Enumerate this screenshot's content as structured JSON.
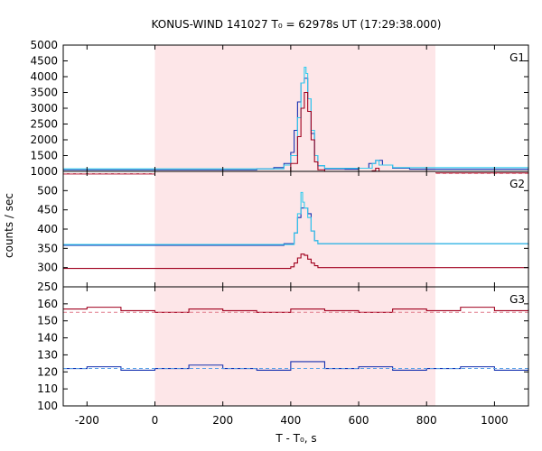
{
  "chart_data": {
    "type": "line",
    "title": "KONUS-WIND 141027 T₀ = 62978s UT (17:29:38.000)",
    "xlabel": "T - T₀, s",
    "ylabel": "counts / sec",
    "xlim": [
      -270,
      1100
    ],
    "x_ticks": [
      -200,
      0,
      200,
      400,
      600,
      800,
      1000
    ],
    "shaded_interval": [
      0,
      826
    ],
    "grid": false,
    "legend": "none",
    "colors": {
      "shade": "#fde6e8",
      "red": "#a0001e",
      "blue": "#1530b0",
      "cyan": "#33ccee",
      "red_fit": "#e07a8a",
      "blue_fit": "#5aa0e6"
    },
    "panels": [
      {
        "label": "G1",
        "ylim": [
          1000,
          5000
        ],
        "y_ticks": [
          1000,
          1500,
          2000,
          2500,
          3000,
          3500,
          4000,
          4500,
          5000
        ],
        "series": [
          {
            "style": "blue",
            "x": [
              -270,
              300,
              350,
              380,
              400,
              410,
              420,
              430,
              440,
              450,
              460,
              470,
              480,
              500,
              560,
              600,
              630,
              650,
              670,
              700,
              750,
              1100
            ],
            "y": [
              1050,
              1080,
              1120,
              1250,
              1600,
              2300,
              3200,
              3800,
              3950,
              3300,
              2200,
              1500,
              1180,
              1080,
              1070,
              1100,
              1250,
              1350,
              1200,
              1100,
              1070,
              1050
            ]
          },
          {
            "style": "cyan",
            "x": [
              -270,
              380,
              400,
              420,
              430,
              440,
              445,
              450,
              460,
              470,
              480,
              500,
              640,
              650,
              660,
              700,
              1100
            ],
            "y": [
              1080,
              1200,
              1500,
              2700,
              3800,
              4300,
              4100,
              3300,
              2300,
              1500,
              1180,
              1100,
              1250,
              1350,
              1200,
              1120,
              1080
            ]
          },
          {
            "style": "red",
            "x": [
              -270,
              380,
              400,
              420,
              430,
              440,
              450,
              460,
              470,
              480,
              500,
              640,
              650,
              660,
              700,
              1100
            ],
            "y": [
              920,
              1000,
              1250,
              2100,
              3000,
              3500,
              2900,
              2000,
              1300,
              1050,
              960,
              1020,
              1100,
              1000,
              950,
              920
            ]
          },
          {
            "style": "red_fit",
            "x": [
              -270,
              1100
            ],
            "y": [
              930,
              930
            ]
          }
        ]
      },
      {
        "label": "G2",
        "ylim": [
          250,
          550
        ],
        "y_ticks": [
          250,
          300,
          350,
          400,
          450,
          500
        ],
        "series": [
          {
            "style": "blue",
            "x": [
              -270,
              380,
              410,
              420,
              430,
              440,
              450,
              460,
              470,
              480,
              1100
            ],
            "y": [
              358,
              362,
              390,
              430,
              455,
              455,
              440,
              395,
              370,
              362,
              358
            ]
          },
          {
            "style": "cyan",
            "x": [
              -270,
              410,
              420,
              430,
              435,
              440,
              450,
              460,
              470,
              480,
              1100
            ],
            "y": [
              360,
              390,
              440,
              495,
              470,
              455,
              430,
              395,
              370,
              362,
              360
            ]
          },
          {
            "style": "red",
            "x": [
              -270,
              400,
              410,
              420,
              430,
              440,
              450,
              460,
              470,
              480,
              1100
            ],
            "y": [
              298,
              302,
              312,
              325,
              335,
              332,
              322,
              312,
              305,
              300,
              298
            ]
          }
        ]
      },
      {
        "label": "G3",
        "ylim": [
          100,
          170
        ],
        "y_ticks": [
          100,
          110,
          120,
          130,
          140,
          150,
          160
        ],
        "series": [
          {
            "style": "red",
            "x": [
              -270,
              -200,
              -100,
              0,
              100,
              200,
              300,
              400,
              500,
              600,
              700,
              800,
              900,
              1000,
              1100
            ],
            "y": [
              157,
              158,
              156,
              155,
              157,
              156,
              155,
              157,
              156,
              155,
              157,
              156,
              158,
              156,
              157
            ]
          },
          {
            "style": "blue",
            "x": [
              -270,
              -200,
              -100,
              0,
              100,
              200,
              300,
              400,
              500,
              600,
              700,
              800,
              900,
              1000,
              1100
            ],
            "y": [
              122,
              123,
              121,
              122,
              124,
              122,
              121,
              126,
              122,
              123,
              121,
              122,
              123,
              121,
              122
            ]
          },
          {
            "style": "red_fit",
            "x": [
              -270,
              1100
            ],
            "y": [
              155,
              155
            ]
          },
          {
            "style": "blue_fit",
            "x": [
              -270,
              1100
            ],
            "y": [
              122,
              122
            ]
          }
        ]
      }
    ]
  }
}
